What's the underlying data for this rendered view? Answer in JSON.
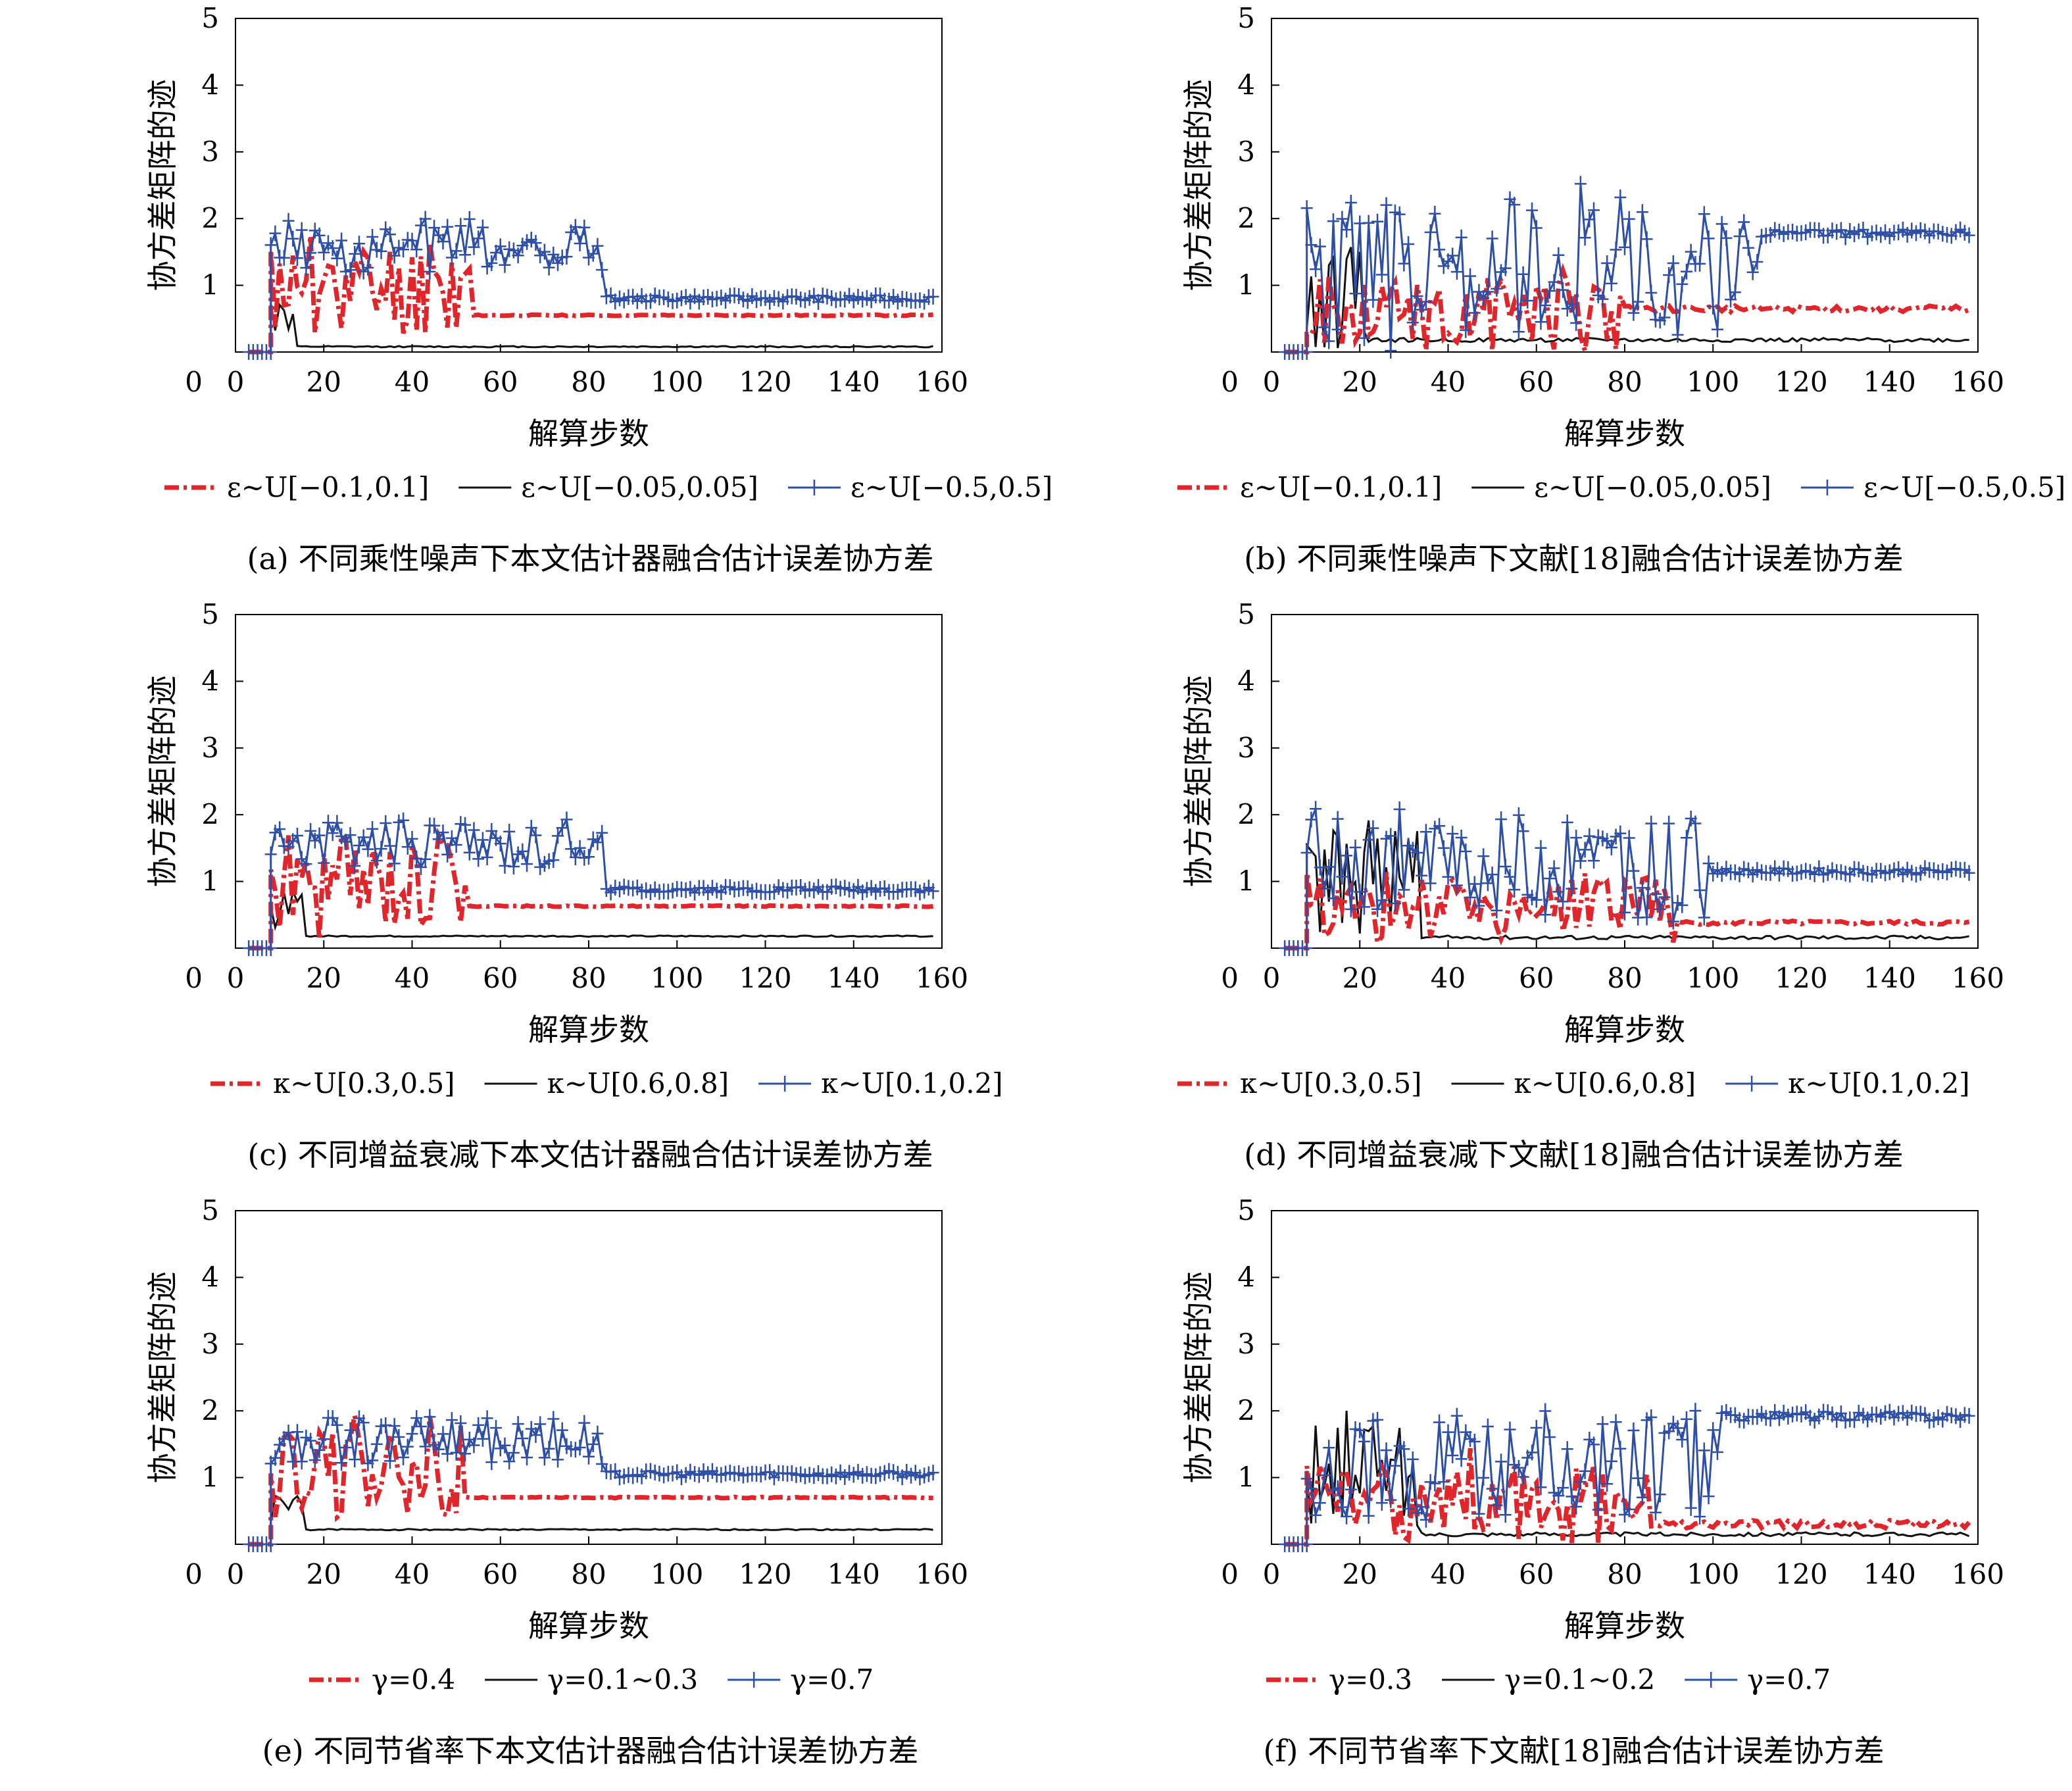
{
  "shared": {
    "ylabel": "协方差矩阵的迹",
    "xlabel": "解算步数",
    "xticks": [
      "0",
      "20",
      "40",
      "60",
      "80",
      "100",
      "120",
      "140",
      "160"
    ],
    "yticks": [
      "1",
      "2",
      "3",
      "4",
      "5"
    ],
    "y0": "0"
  },
  "colors": {
    "red": "#e0252b",
    "black": "#111111",
    "blue": "#2e4fa6"
  },
  "chart_data": [
    {
      "id": "a",
      "type": "line",
      "title": "(a) 不同乘性噪声下本文估计器融合估计误差协方差",
      "xlabel": "解算步数",
      "ylabel": "协方差矩阵的迹",
      "xlim": [
        0,
        160
      ],
      "ylim": [
        0,
        5
      ],
      "series": [
        {
          "name": "ε~U[−0.1,0.1]",
          "style": "red",
          "transient_end": 54,
          "steady": 0.55,
          "amp": 0.72,
          "base": 0.95,
          "ripple": 0.01,
          "seed": 11
        },
        {
          "name": "ε~U[−0.05,0.05]",
          "style": "black",
          "transient_end": 14,
          "steady": 0.08,
          "amp": 0.35,
          "base": 0.55,
          "ripple": 0.01,
          "seed": 12
        },
        {
          "name": "ε~U[−0.5,0.5]",
          "style": "blue",
          "transient_end": 84,
          "steady": 0.8,
          "amp": 0.35,
          "base": 1.55,
          "ripple": 0.05,
          "seed": 13
        }
      ]
    },
    {
      "id": "b",
      "type": "line",
      "title": "(b) 不同乘性噪声下文献[18]融合估计误差协方差",
      "xlabel": "解算步数",
      "ylabel": "协方差矩阵的迹",
      "xlim": [
        0,
        160
      ],
      "ylim": [
        0,
        5
      ],
      "series": [
        {
          "name": "ε~U[−0.1,0.1]",
          "style": "red",
          "transient_end": 80,
          "steady": 0.65,
          "amp": 0.6,
          "base": 0.55,
          "ripple": 0.05,
          "seed": 21
        },
        {
          "name": "ε~U[−0.05,0.05]",
          "style": "black",
          "transient_end": 22,
          "steady": 0.18,
          "amp": 0.85,
          "base": 0.9,
          "ripple": 0.03,
          "seed": 22
        },
        {
          "name": "ε~U[−0.5,0.5]",
          "style": "blue",
          "transient_end": 112,
          "steady": 1.78,
          "amp": 1.1,
          "base": 1.2,
          "ripple": 0.06,
          "seed": 23
        }
      ]
    },
    {
      "id": "c",
      "type": "line",
      "title": "(c) 不同增益衰减下本文估计器融合估计误差协方差",
      "xlabel": "解算步数",
      "ylabel": "协方差矩阵的迹",
      "xlim": [
        0,
        160
      ],
      "ylim": [
        0,
        5
      ],
      "series": [
        {
          "name": "κ~U[0.3,0.5]",
          "style": "red",
          "transient_end": 54,
          "steady": 0.63,
          "amp": 0.72,
          "base": 1.0,
          "ripple": 0.01,
          "seed": 31
        },
        {
          "name": "κ~U[0.6,0.8]",
          "style": "black",
          "transient_end": 16,
          "steady": 0.18,
          "amp": 0.3,
          "base": 0.55,
          "ripple": 0.01,
          "seed": 32
        },
        {
          "name": "κ~U[0.1,0.2]",
          "style": "blue",
          "transient_end": 84,
          "steady": 0.88,
          "amp": 0.35,
          "base": 1.55,
          "ripple": 0.05,
          "seed": 33
        }
      ]
    },
    {
      "id": "d",
      "type": "line",
      "title": "(d) 不同增益衰减下文献[18]融合估计误差协方差",
      "xlabel": "解算步数",
      "ylabel": "协方差矩阵的迹",
      "xlim": [
        0,
        160
      ],
      "ylim": [
        0,
        5
      ],
      "series": [
        {
          "name": "κ~U[0.3,0.5]",
          "style": "red",
          "transient_end": 92,
          "steady": 0.38,
          "amp": 0.55,
          "base": 0.6,
          "ripple": 0.03,
          "seed": 41
        },
        {
          "name": "κ~U[0.6,0.8]",
          "style": "black",
          "transient_end": 34,
          "steady": 0.16,
          "amp": 0.85,
          "base": 1.0,
          "ripple": 0.03,
          "seed": 42
        },
        {
          "name": "κ~U[0.1,0.2]",
          "style": "blue",
          "transient_end": 100,
          "steady": 1.15,
          "amp": 0.75,
          "base": 1.2,
          "ripple": 0.05,
          "seed": 43
        }
      ]
    },
    {
      "id": "e",
      "type": "line",
      "title": "(e) 不同节省率下本文估计器融合估计误差协方差",
      "xlabel": "解算步数",
      "ylabel": "协方差矩阵的迹",
      "xlim": [
        0,
        160
      ],
      "ylim": [
        0,
        5
      ],
      "series": [
        {
          "name": "γ=0.4",
          "style": "red",
          "transient_end": 52,
          "steady": 0.7,
          "amp": 0.7,
          "base": 1.0,
          "ripple": 0.01,
          "seed": 51
        },
        {
          "name": "γ=0.1~0.3",
          "style": "black",
          "transient_end": 16,
          "steady": 0.22,
          "amp": 0.25,
          "base": 0.5,
          "ripple": 0.01,
          "seed": 52
        },
        {
          "name": "γ=0.7",
          "style": "blue",
          "transient_end": 84,
          "steady": 1.05,
          "amp": 0.35,
          "base": 1.55,
          "ripple": 0.05,
          "seed": 53
        }
      ]
    },
    {
      "id": "f",
      "type": "line",
      "title": "(f) 不同节省率下文献[18]融合估计误差协方差",
      "xlabel": "解算步数",
      "ylabel": "协方差矩阵的迹",
      "xlim": [
        0,
        160
      ],
      "ylim": [
        0,
        5
      ],
      "series": [
        {
          "name": "γ=0.3",
          "style": "red",
          "transient_end": 86,
          "steady": 0.3,
          "amp": 0.6,
          "base": 0.6,
          "ripple": 0.06,
          "seed": 61
        },
        {
          "name": "γ=0.1~0.2",
          "style": "black",
          "transient_end": 34,
          "steady": 0.15,
          "amp": 0.8,
          "base": 1.0,
          "ripple": 0.03,
          "seed": 62
        },
        {
          "name": "γ=0.7",
          "style": "blue",
          "transient_end": 102,
          "steady": 1.92,
          "amp": 0.85,
          "base": 1.2,
          "ripple": 0.07,
          "seed": 63
        }
      ]
    }
  ]
}
